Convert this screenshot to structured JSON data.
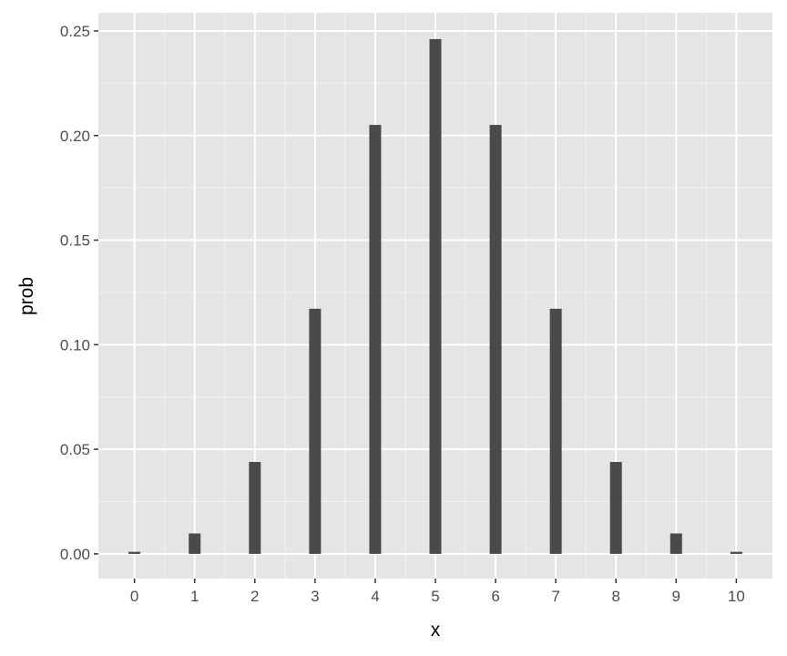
{
  "chart_data": {
    "type": "bar",
    "xlabel": "x",
    "ylabel": "prob",
    "x": [
      0,
      1,
      2,
      3,
      4,
      5,
      6,
      7,
      8,
      9,
      10
    ],
    "values": [
      0.000977,
      0.009766,
      0.043945,
      0.117188,
      0.205078,
      0.246094,
      0.205078,
      0.117188,
      0.043945,
      0.009766,
      0.000977
    ],
    "xticks": [
      "0",
      "1",
      "2",
      "3",
      "4",
      "5",
      "6",
      "7",
      "8",
      "9",
      "10"
    ],
    "yticks": [
      "0.00",
      "0.05",
      "0.10",
      "0.15",
      "0.20",
      "0.25"
    ],
    "xlim": [
      -0.6,
      10.6
    ],
    "ylim": [
      -0.0118,
      0.2587
    ],
    "grid": true,
    "colors": {
      "bar": "#4a4a4a",
      "panel": "#e5e5e5",
      "grid": "#ffffff"
    }
  }
}
